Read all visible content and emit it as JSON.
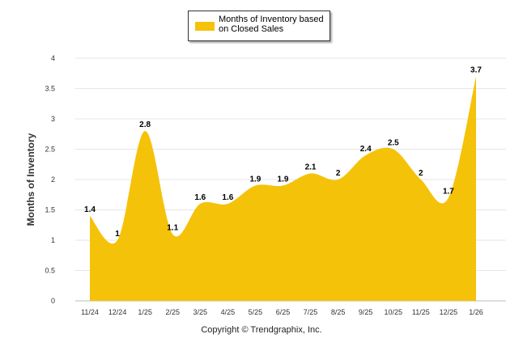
{
  "chart_data": {
    "type": "area",
    "legend": {
      "label": "Months of Inventory based on Closed Sales",
      "placement": "top-center"
    },
    "categories": [
      "11/24",
      "12/24",
      "1/25",
      "2/25",
      "3/25",
      "4/25",
      "5/25",
      "6/25",
      "7/25",
      "8/25",
      "9/25",
      "10/25",
      "11/25",
      "12/25",
      "1/26"
    ],
    "values": [
      1.4,
      1,
      2.8,
      1.1,
      1.6,
      1.6,
      1.9,
      1.9,
      2.1,
      2,
      2.4,
      2.5,
      2,
      1.7,
      3.7
    ],
    "data_labels": [
      "1.4",
      "1",
      "2.8",
      "1.1",
      "1.6",
      "1.6",
      "1.9",
      "1.9",
      "2.1",
      "2",
      "2.4",
      "2.5",
      "2",
      "1.7",
      "3.7"
    ],
    "ylim": [
      0,
      4
    ],
    "yticks": [
      "0",
      "0.5",
      "1",
      "1.5",
      "2",
      "2.5",
      "3",
      "3.5",
      "4"
    ],
    "ylabel": "Months of Inventory",
    "xlabel": "",
    "grid": true,
    "fill_color": "#f5c20a"
  },
  "footer": {
    "copyright": "Copyright © Trendgraphix, Inc."
  }
}
